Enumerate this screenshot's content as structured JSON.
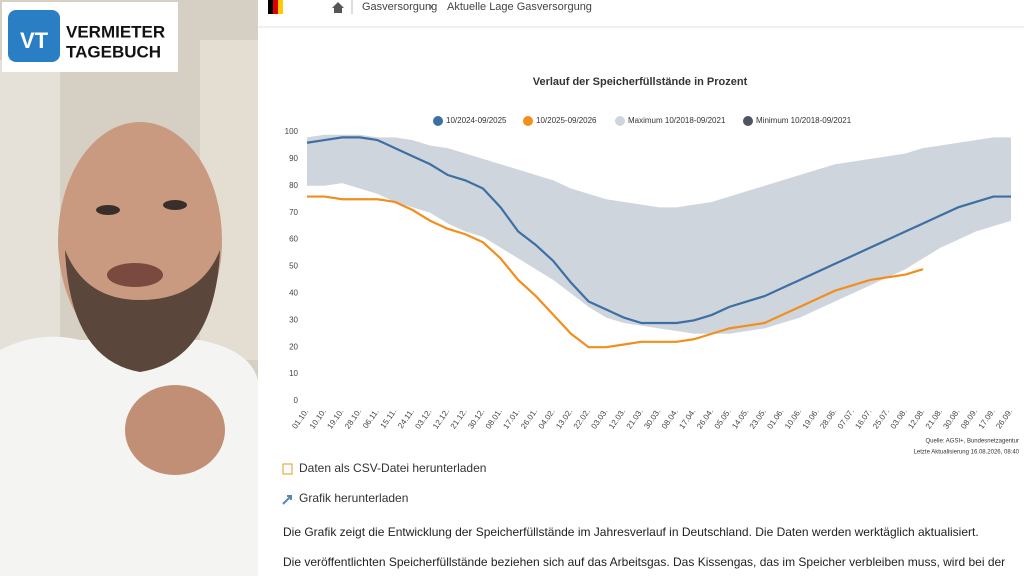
{
  "logo": {
    "initials": "VT",
    "line1": "VERMIETER",
    "line2": "TAGEBUCH"
  },
  "breadcrumb": [
    "Gasversorgung",
    "Aktuelle Lage Gasversorgung"
  ],
  "chart_data": {
    "type": "line",
    "title": "Verlauf der Speicherfüllstände in Prozent",
    "categories": [
      "01.10.",
      "10.10.",
      "19.10.",
      "28.10.",
      "06.11.",
      "15.11.",
      "24.11.",
      "03.12.",
      "12.12.",
      "21.12.",
      "30.12.",
      "08.01.",
      "17.01.",
      "26.01.",
      "04.02.",
      "13.02.",
      "22.02.",
      "03.03.",
      "12.03.",
      "21.03.",
      "30.03.",
      "08.04.",
      "17.04.",
      "26.04.",
      "05.05.",
      "14.05.",
      "23.05.",
      "01.06.",
      "10.06.",
      "19.06.",
      "28.06.",
      "07.07.",
      "16.07.",
      "25.07.",
      "03.08.",
      "12.08.",
      "21.08.",
      "30.08.",
      "08.09.",
      "17.09.",
      "26.09."
    ],
    "series": [
      {
        "name": "10/2024-09/2025",
        "color": "#3e6fa3",
        "values": [
          96,
          97,
          98,
          98,
          97,
          94,
          91,
          88,
          84,
          82,
          79,
          72,
          63,
          58,
          52,
          44,
          37,
          34,
          31,
          29,
          29,
          29,
          30,
          32,
          35,
          37,
          39,
          42,
          45,
          48,
          51,
          54,
          57,
          60,
          63,
          66,
          69,
          72,
          74,
          76,
          76
        ]
      },
      {
        "name": "10/2025-09/2026",
        "color": "#f28e1c",
        "values": [
          76,
          76,
          75,
          75,
          75,
          74,
          71,
          67,
          64,
          62,
          59,
          53,
          45,
          39,
          32,
          25,
          20,
          20,
          21,
          22,
          22,
          22,
          23,
          25,
          27,
          28,
          29,
          32,
          35,
          38,
          41,
          43,
          45,
          46,
          47,
          49,
          null,
          null,
          null,
          null,
          null
        ]
      },
      {
        "name": "Maximum 10/2018-09/2021",
        "color": "#cfd5dd",
        "values": [
          98,
          99,
          99,
          99,
          98,
          98,
          97,
          95,
          94,
          92,
          90,
          88,
          86,
          84,
          82,
          79,
          77,
          75,
          74,
          73,
          72,
          72,
          73,
          74,
          76,
          78,
          80,
          82,
          84,
          86,
          88,
          89,
          90,
          91,
          92,
          94,
          95,
          96,
          97,
          98,
          98
        ]
      },
      {
        "name": "Minimum 10/2018-09/2021",
        "color": "#4d5560",
        "values": [
          80,
          80,
          81,
          79,
          77,
          74,
          72,
          70,
          66,
          63,
          61,
          57,
          53,
          49,
          45,
          40,
          35,
          31,
          29,
          28,
          27,
          26,
          25,
          25,
          25,
          26,
          27,
          29,
          31,
          34,
          37,
          40,
          43,
          46,
          49,
          53,
          57,
          60,
          63,
          65,
          67
        ]
      }
    ],
    "ylim": [
      0,
      100
    ],
    "yticks": [
      0,
      10,
      20,
      30,
      40,
      50,
      60,
      70,
      80,
      90,
      100
    ],
    "source": "Quelle: AGSI+, Bundesnetzagentur",
    "updated": "Letzte Aktualisierung 16.08.2026, 08:40"
  },
  "links": [
    "Daten als CSV-Datei herunterladen",
    "Grafik herunterladen"
  ],
  "paragraphs": [
    "Die Grafik zeigt die Entwicklung der Speicherfüllstände im Jahresverlauf in Deutschland. Die Daten werden werktäglich aktualisiert.",
    "Die veröffentlichten Speicherfüllstände beziehen sich auf das Arbeitsgas. Das Kissengas, das im Speicher verbleiben muss, wird bei der"
  ]
}
